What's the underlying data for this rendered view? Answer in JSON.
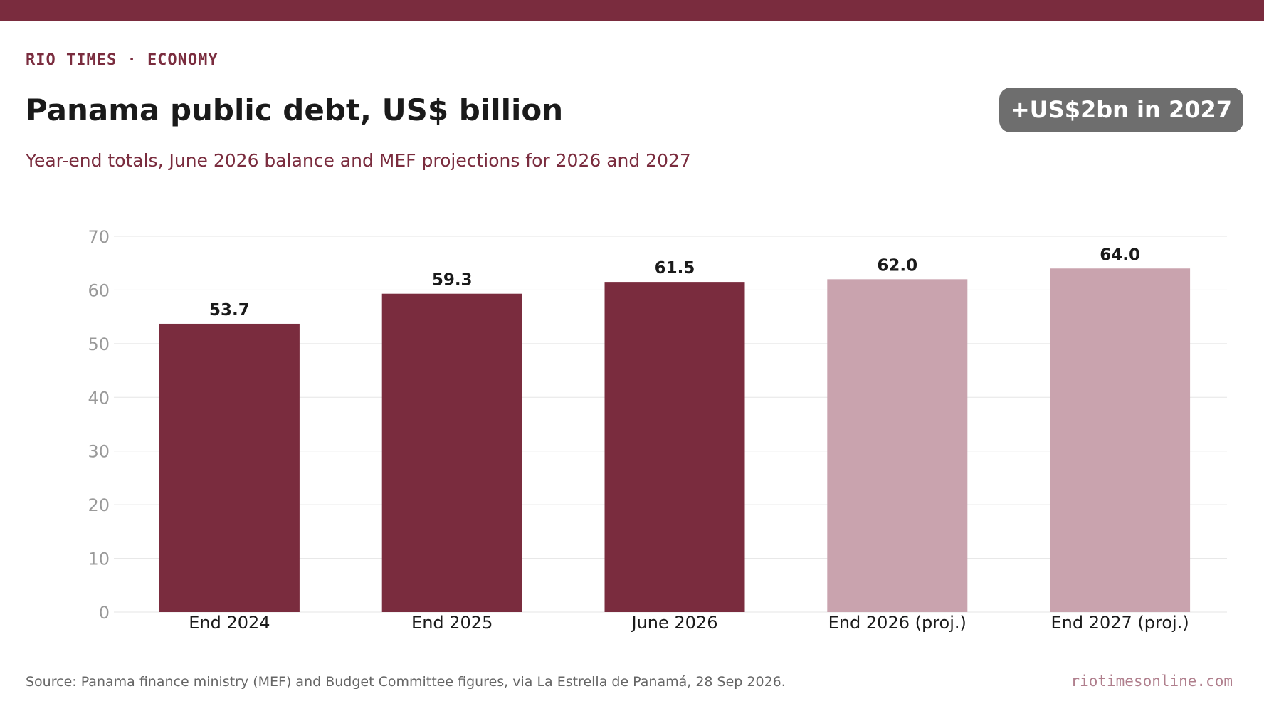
{
  "header": {
    "kicker": "RIO TIMES · ECONOMY",
    "title": "Panama public debt, US$ billion",
    "subtitle": "Year-end totals, June 2026 balance and MEF projections for 2026 and 2027",
    "badge": "+US$2bn in 2027"
  },
  "colors": {
    "accent": "#7a2c3e",
    "projected": "#c9a3ae",
    "badge_bg": "#6e6e6e",
    "grid": "#e5e5e5",
    "tick_text": "#999999",
    "site_text": "#b07f8d"
  },
  "chart_data": {
    "type": "bar",
    "categories": [
      "End 2024",
      "End 2025",
      "June 2026",
      "End 2026 (proj.)",
      "End 2027 (proj.)"
    ],
    "values": [
      53.7,
      59.3,
      61.5,
      62.0,
      64.0
    ],
    "value_labels": [
      "53.7",
      "59.3",
      "61.5",
      "62.0",
      "64.0"
    ],
    "projected": [
      false,
      false,
      false,
      true,
      true
    ],
    "ylim": [
      0,
      70
    ],
    "yticks": [
      0,
      10,
      20,
      30,
      40,
      50,
      60,
      70
    ],
    "grid": true,
    "xlabel": "",
    "ylabel": ""
  },
  "footer": {
    "source": "Source: Panama finance ministry (MEF) and Budget Committee figures, via La Estrella de Panamá, 28 Sep 2026.",
    "site": "riotimesonline.com"
  }
}
